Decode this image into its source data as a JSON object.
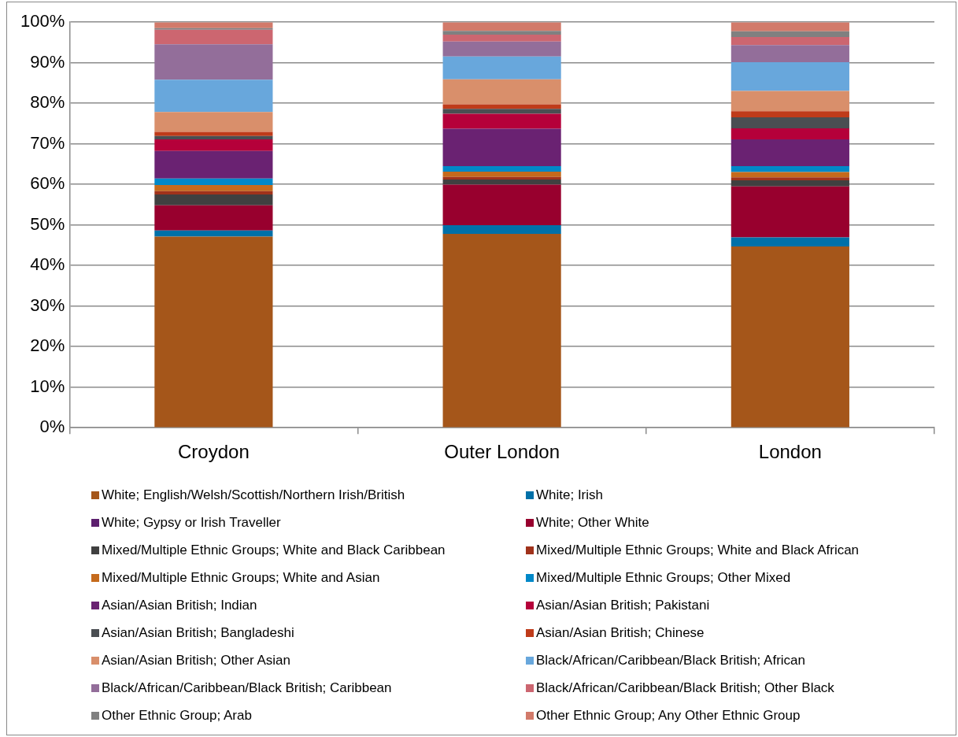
{
  "chart_data": {
    "type": "bar",
    "stacked": true,
    "categories": [
      "Croydon",
      "Outer London",
      "London"
    ],
    "ylim": [
      0,
      100
    ],
    "yticks": [
      {
        "value": 0,
        "label": "0%"
      },
      {
        "value": 10,
        "label": "10%"
      },
      {
        "value": 20,
        "label": "20%"
      },
      {
        "value": 30,
        "label": "30%"
      },
      {
        "value": 40,
        "label": "40%"
      },
      {
        "value": 50,
        "label": "50%"
      },
      {
        "value": 60,
        "label": "60%"
      },
      {
        "value": 70,
        "label": "70%"
      },
      {
        "value": 80,
        "label": "80%"
      },
      {
        "value": 90,
        "label": "90%"
      },
      {
        "value": 100,
        "label": "100%"
      }
    ],
    "grid": "y",
    "legend": "bottom",
    "series": [
      {
        "name": "White; English/Welsh/Scottish/Northern Irish/British",
        "color": "#a5561a",
        "values": [
          47.1,
          47.8,
          44.7
        ]
      },
      {
        "name": "White; Irish",
        "color": "#0070a8",
        "values": [
          1.5,
          2.1,
          2.2
        ]
      },
      {
        "name": "White; Gypsy or Irish Traveller",
        "color": "#5c1f6e",
        "values": [
          null,
          null,
          null
        ]
      },
      {
        "name": "White; Other White",
        "color": "#98002e",
        "values": [
          6.2,
          10.0,
          12.6
        ]
      },
      {
        "name": "Mixed/Multiple Ethnic Groups; White and Black Caribbean",
        "color": "#404040",
        "values": [
          2.7,
          1.3,
          1.5
        ]
      },
      {
        "name": "Mixed/Multiple Ethnic Groups; White and Black African",
        "color": "#a0321b",
        "values": [
          0.8,
          0.6,
          0.7
        ]
      },
      {
        "name": "Mixed/Multiple Ethnic Groups; White and Asian",
        "color": "#c56a1c",
        "values": [
          1.5,
          1.3,
          1.3
        ]
      },
      {
        "name": "Mixed/Multiple Ethnic Groups; Other Mixed",
        "color": "#0088c8",
        "values": [
          1.6,
          1.4,
          1.5
        ]
      },
      {
        "name": "Asian/Asian British; Indian",
        "color": "#6a2272",
        "values": [
          6.8,
          9.2,
          6.6
        ]
      },
      {
        "name": "Asian/Asian British; Pakistani",
        "color": "#b5003a",
        "values": [
          2.9,
          3.7,
          2.7
        ]
      },
      {
        "name": "Asian/Asian British; Bangladeshi",
        "color": "#4a4e52",
        "values": [
          0.8,
          1.2,
          2.7
        ]
      },
      {
        "name": "Asian/Asian British; Chinese",
        "color": "#bf3b1a",
        "values": [
          1.0,
          1.1,
          1.5
        ]
      },
      {
        "name": "Asian/Asian British; Other Asian",
        "color": "#d98f6b",
        "values": [
          4.9,
          6.2,
          5.0
        ]
      },
      {
        "name": "Black/African/Caribbean/Black British; African",
        "color": "#68a7dc",
        "values": [
          8.0,
          5.6,
          7.1
        ]
      },
      {
        "name": "Black/African/Caribbean/Black British; Caribbean",
        "color": "#936e9a",
        "values": [
          8.7,
          3.7,
          4.2
        ]
      },
      {
        "name": "Black/African/Caribbean/Black British; Other Black",
        "color": "#cc6670",
        "values": [
          3.6,
          1.7,
          2.0
        ]
      },
      {
        "name": "Other Ethnic Group; Arab",
        "color": "#808080",
        "values": [
          0.4,
          0.9,
          1.4
        ]
      },
      {
        "name": "Other Ethnic Group; Any Other Ethnic Group",
        "color": "#d27a6a",
        "values": [
          1.4,
          2.1,
          2.2
        ]
      }
    ]
  }
}
